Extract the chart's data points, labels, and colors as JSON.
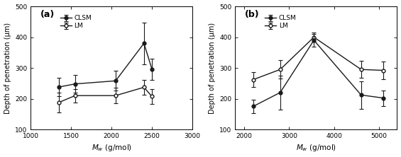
{
  "panel_a": {
    "label": "(a)",
    "xlim": [
      1000,
      3000
    ],
    "xticks": [
      1000,
      1500,
      2000,
      2500,
      3000
    ],
    "xlabel": "$M_w$ (g/mol)",
    "ylabel": "Depth of penetration (μm)",
    "ylim": [
      100,
      500
    ],
    "yticks": [
      100,
      200,
      300,
      400,
      500
    ],
    "clsm_x": [
      1350,
      1550,
      2050,
      2400,
      2500
    ],
    "clsm_y": [
      238,
      248,
      258,
      380,
      295
    ],
    "clsm_yerr": [
      30,
      28,
      32,
      68,
      35
    ],
    "lm_x": [
      1350,
      1550,
      2050,
      2400,
      2500
    ],
    "lm_y": [
      188,
      210,
      210,
      237,
      207
    ],
    "lm_yerr": [
      32,
      22,
      25,
      25,
      25
    ]
  },
  "panel_b": {
    "label": "(b)",
    "xlim": [
      1800,
      5400
    ],
    "xticks": [
      2000,
      3000,
      4000,
      5000
    ],
    "xlabel": "$M_w$ (g/mol)",
    "ylabel": "Depth of penetration (μm)",
    "ylim": [
      100,
      500
    ],
    "yticks": [
      100,
      200,
      300,
      400,
      500
    ],
    "clsm_x": [
      2200,
      2800,
      3550,
      4600,
      5100
    ],
    "clsm_y": [
      175,
      220,
      390,
      212,
      202
    ],
    "clsm_yerr": [
      22,
      55,
      20,
      45,
      25
    ],
    "lm_x": [
      2200,
      2800,
      3550,
      4600,
      5100
    ],
    "lm_y": [
      262,
      295,
      400,
      295,
      292
    ],
    "lm_yerr": [
      25,
      30,
      15,
      28,
      28
    ]
  },
  "line_color": "#1a1a1a",
  "bg_color": "#ffffff",
  "legend_labels": [
    "CLSM",
    "LM"
  ]
}
